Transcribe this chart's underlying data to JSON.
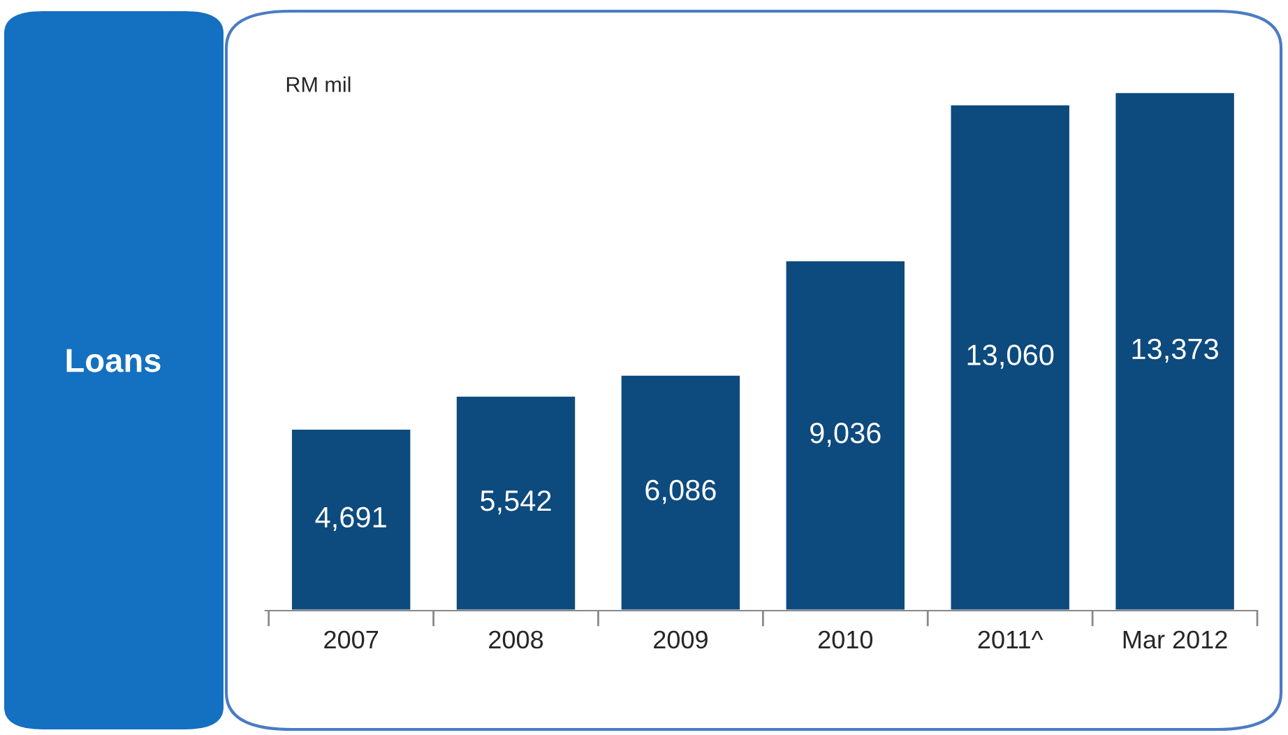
{
  "chart_data": {
    "type": "bar",
    "title": "Loans",
    "ylabel": "RM mil",
    "categories": [
      "2007",
      "2008",
      "2009",
      "2010",
      "2011^",
      "Mar 2012"
    ],
    "values": [
      4691,
      5542,
      6086,
      9036,
      13060,
      13373
    ],
    "value_labels": [
      "4,691",
      "5,542",
      "6,086",
      "9,036",
      "13,060",
      "13,373"
    ],
    "color": "#0d4a7e",
    "grid": false,
    "legend": false
  }
}
